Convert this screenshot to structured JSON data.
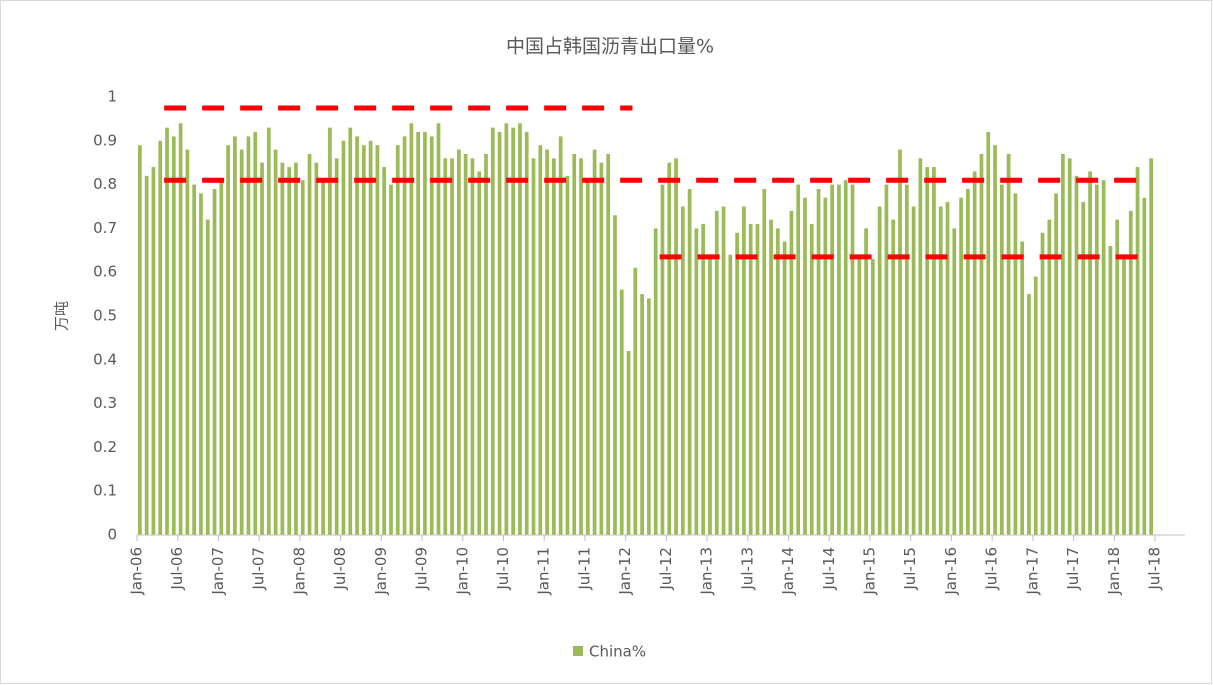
{
  "chart_data": {
    "type": "bar",
    "title": "中国占韩国沥青出口量%",
    "y_label": "万吨",
    "categories": [
      "Jan-06",
      null,
      null,
      null,
      null,
      null,
      "Jul-06",
      null,
      null,
      null,
      null,
      null,
      "Jan-07",
      null,
      null,
      null,
      null,
      null,
      "Jul-07",
      null,
      null,
      null,
      null,
      null,
      "Jan-08",
      null,
      null,
      null,
      null,
      null,
      "Jul-08",
      null,
      null,
      null,
      null,
      null,
      "Jan-09",
      null,
      null,
      null,
      null,
      null,
      "Jul-09",
      null,
      null,
      null,
      null,
      null,
      "Jan-10",
      null,
      null,
      null,
      null,
      null,
      "Jul-10",
      null,
      null,
      null,
      null,
      null,
      "Jan-11",
      null,
      null,
      null,
      null,
      null,
      "Jul-11",
      null,
      null,
      null,
      null,
      null,
      "Jan-12",
      null,
      null,
      null,
      null,
      null,
      "Jul-12",
      null,
      null,
      null,
      null,
      null,
      "Jan-13",
      null,
      null,
      null,
      null,
      null,
      "Jul-13",
      null,
      null,
      null,
      null,
      null,
      "Jan-14",
      null,
      null,
      null,
      null,
      null,
      "Jul-14",
      null,
      null,
      null,
      null,
      null,
      "Jan-15",
      null,
      null,
      null,
      null,
      null,
      "Jul-15",
      null,
      null,
      null,
      null,
      null,
      "Jan-16",
      null,
      null,
      null,
      null,
      null,
      "Jul-16",
      null,
      null,
      null,
      null,
      null,
      "Jan-17",
      null,
      null,
      null,
      null,
      null,
      "Jul-17",
      null,
      null,
      null,
      null,
      null,
      "Jan-18",
      null,
      null,
      null,
      null,
      null,
      "Jul-18"
    ],
    "series": [
      {
        "name": "China%",
        "color": "#9bbb59",
        "values": [
          0.89,
          0.82,
          0.84,
          0.9,
          0.93,
          0.91,
          0.94,
          0.88,
          0.8,
          0.78,
          0.72,
          0.79,
          0.81,
          0.89,
          0.91,
          0.88,
          0.91,
          0.92,
          0.85,
          0.93,
          0.88,
          0.85,
          0.84,
          0.85,
          0.81,
          0.87,
          0.85,
          0.81,
          0.93,
          0.86,
          0.9,
          0.93,
          0.91,
          0.89,
          0.9,
          0.89,
          0.84,
          0.8,
          0.89,
          0.91,
          0.94,
          0.92,
          0.92,
          0.91,
          0.94,
          0.86,
          0.86,
          0.88,
          0.87,
          0.86,
          0.83,
          0.87,
          0.93,
          0.92,
          0.94,
          0.93,
          0.94,
          0.92,
          0.86,
          0.89,
          0.88,
          0.86,
          0.91,
          0.82,
          0.87,
          0.86,
          0.81,
          0.88,
          0.85,
          0.87,
          0.73,
          0.56,
          0.42,
          0.61,
          0.55,
          0.54,
          0.7,
          0.8,
          0.85,
          0.86,
          0.75,
          0.79,
          0.7,
          0.71,
          0.64,
          0.74,
          0.75,
          0.64,
          0.69,
          0.75,
          0.71,
          0.71,
          0.79,
          0.72,
          0.7,
          0.67,
          0.74,
          0.8,
          0.77,
          0.71,
          0.79,
          0.77,
          0.8,
          0.8,
          0.81,
          0.8,
          0.63,
          0.7,
          0.63,
          0.75,
          0.8,
          0.72,
          0.88,
          0.8,
          0.75,
          0.86,
          0.84,
          0.84,
          0.75,
          0.76,
          0.7,
          0.77,
          0.79,
          0.83,
          0.87,
          0.92,
          0.89,
          0.8,
          0.87,
          0.78,
          0.67,
          0.55,
          0.59,
          0.69,
          0.72,
          0.78,
          0.87,
          0.86,
          0.82,
          0.76,
          0.83,
          0.8,
          0.81,
          0.66,
          0.72,
          0.63,
          0.74,
          0.84,
          0.77,
          0.86,
          null
        ]
      }
    ],
    "reference_lines": [
      {
        "value": 0.975,
        "color": "#ff0000",
        "start": 4,
        "end": 73
      },
      {
        "value": 0.81,
        "color": "#ff0000",
        "start": 4,
        "end": 148
      },
      {
        "value": 0.635,
        "color": "#ff0000",
        "start": 77,
        "end": 148
      }
    ],
    "ylim": [
      0,
      1
    ],
    "yticks": [
      0,
      0.1,
      0.2,
      0.3,
      0.4,
      0.5,
      0.6,
      0.7,
      0.8,
      0.9,
      1
    ],
    "grid": false,
    "legend": "bottom"
  }
}
